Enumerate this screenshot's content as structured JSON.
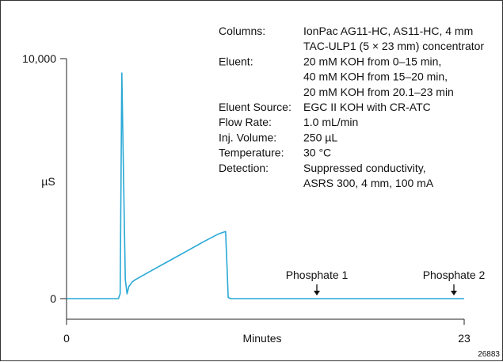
{
  "chart_data": {
    "type": "line",
    "title": "",
    "xlabel": "Minutes",
    "ylabel": "µS",
    "xlim": [
      0,
      23
    ],
    "ylim": [
      0,
      10000
    ],
    "x_ticks": [
      "0",
      "23"
    ],
    "y_ticks": [
      "0",
      "10,000"
    ],
    "grid": false,
    "line_color": "#29a9d6",
    "series": [
      {
        "x": [
          0,
          3.0,
          3.1,
          3.2,
          3.3,
          3.4,
          3.5,
          3.6,
          3.7,
          3.8,
          4.0,
          4.5,
          5.0,
          6.0,
          7.0,
          8.0,
          8.8,
          9.2,
          9.3,
          9.35,
          9.5,
          12,
          16,
          20,
          23
        ],
        "y": [
          0,
          0,
          200,
          9400,
          5000,
          800,
          200,
          500,
          600,
          700,
          800,
          1000,
          1200,
          1600,
          2000,
          2400,
          2700,
          2800,
          1000,
          50,
          0,
          0,
          0,
          0,
          0
        ]
      }
    ],
    "annotations": [
      {
        "label": "Phosphate 1",
        "x": 16.0,
        "y": 0
      },
      {
        "label": "Phosphate 2",
        "x": 24.5,
        "y": 0
      }
    ]
  },
  "conditions": [
    {
      "key": "Columns:",
      "lines": [
        "IonPac AG11-HC, AS11-HC, 4 mm",
        "TAC-ULP1 (5 × 23 mm) concentrator"
      ]
    },
    {
      "key": "Eluent:",
      "lines": [
        "20 mM KOH from 0–15 min,",
        "40 mM KOH from 15–20 min,",
        "20 mM KOH from 20.1–23 min"
      ]
    },
    {
      "key": "Eluent Source:",
      "lines": [
        "EGC II KOH  with CR-ATC"
      ]
    },
    {
      "key": "Flow Rate:",
      "lines": [
        "1.0 mL/min"
      ]
    },
    {
      "key": "Inj. Volume:",
      "lines": [
        "250 µL"
      ]
    },
    {
      "key": "Temperature:",
      "lines": [
        "30 °C"
      ]
    },
    {
      "key": "Detection:",
      "lines": [
        "Suppressed conductivity,",
        "ASRS 300, 4 mm, 100 mA"
      ]
    }
  ],
  "figure_id": "26883"
}
